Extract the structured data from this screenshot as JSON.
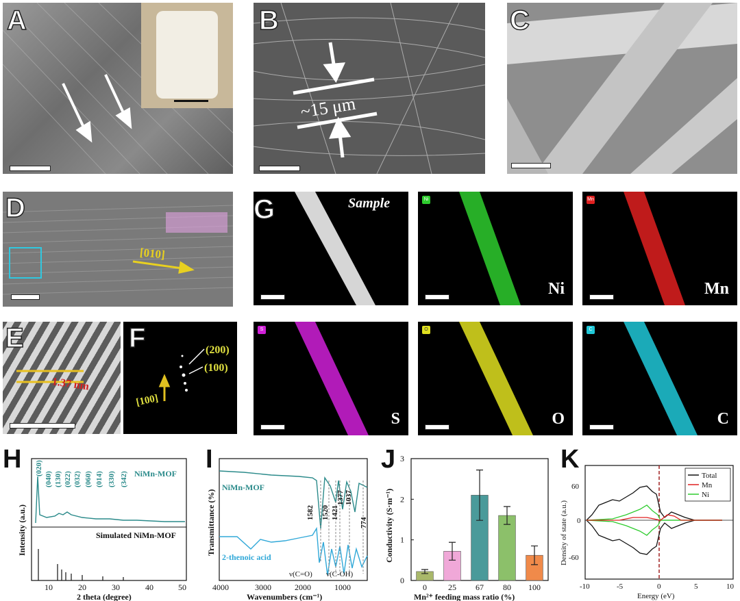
{
  "panels": {
    "A": {
      "label": "A"
    },
    "B": {
      "label": "B",
      "annotation": "~15 μm"
    },
    "C": {
      "label": "C"
    },
    "D": {
      "label": "D",
      "direction": "[010]"
    },
    "E": {
      "label": "E",
      "spacing": "1.37 nm"
    },
    "F": {
      "label": "F",
      "spot1": "(200)",
      "spot2": "(100)",
      "direction": "[100]"
    },
    "G": {
      "label": "G",
      "sample": "Sample",
      "maps": [
        {
          "chip": "Ni",
          "element": "Ni",
          "color": "#2ecc2e"
        },
        {
          "chip": "Mn",
          "element": "Mn",
          "color": "#e02020"
        },
        {
          "chip": "S",
          "element": "S",
          "color": "#d020d8"
        },
        {
          "chip": "O",
          "element": "O",
          "color": "#e0e020"
        },
        {
          "chip": "C",
          "element": "C",
          "color": "#20c8d8"
        }
      ]
    },
    "H": {
      "label": "H",
      "top_name": "NiMn-MOF",
      "bottom_name": "Simulated NiMn-MOF",
      "peaks": [
        "(020)",
        "(040)",
        "(130)",
        "(022)",
        "(032)",
        "(060)",
        "(014)",
        "(330)",
        "(342)"
      ],
      "xlabel": "2 theta (degree)",
      "ylabel": "Intensity (a.u.)",
      "xticks": [
        "10",
        "20",
        "30",
        "40",
        "50"
      ]
    },
    "I": {
      "label": "I",
      "top_name": "NiMn-MOF",
      "bottom_name": "2-thenoic acid",
      "bands": [
        "1582",
        "1520",
        "1421",
        "1377",
        "1037",
        "774"
      ],
      "modes": [
        "ν(C=O)",
        "ν(C-OH)"
      ],
      "xlabel": "Wavenumbers (cm⁻¹)",
      "ylabel": "Transmittance (%)",
      "xticks": [
        "4000",
        "3000",
        "2000",
        "1000"
      ]
    },
    "K": {
      "label": "K",
      "xlabel": "Energy (eV)",
      "ylabel": "Density of state (a.u.)",
      "legend": [
        "Total",
        "Mn",
        "Ni"
      ],
      "xticks": [
        "-10",
        "-5",
        "0",
        "5",
        "10"
      ],
      "yticks": [
        "60",
        "0",
        "-60"
      ]
    }
  },
  "chart_data": [
    {
      "type": "bar",
      "panel": "J",
      "title": "",
      "xlabel": "Mn²⁺ feeding mass ratio (%)",
      "ylabel": "Conductivity (S·m⁻¹)",
      "categories": [
        "0",
        "25",
        "67",
        "80",
        "100"
      ],
      "values": [
        0.22,
        0.72,
        2.1,
        1.6,
        0.62
      ],
      "errors": [
        0.05,
        0.22,
        0.62,
        0.22,
        0.23
      ],
      "colors": [
        "#a9b86a",
        "#f0a8d8",
        "#4a9a9a",
        "#8cc06a",
        "#f08a4a"
      ],
      "ylim": [
        0,
        3
      ],
      "yticks": [
        "0",
        "1",
        "2",
        "3"
      ]
    }
  ]
}
